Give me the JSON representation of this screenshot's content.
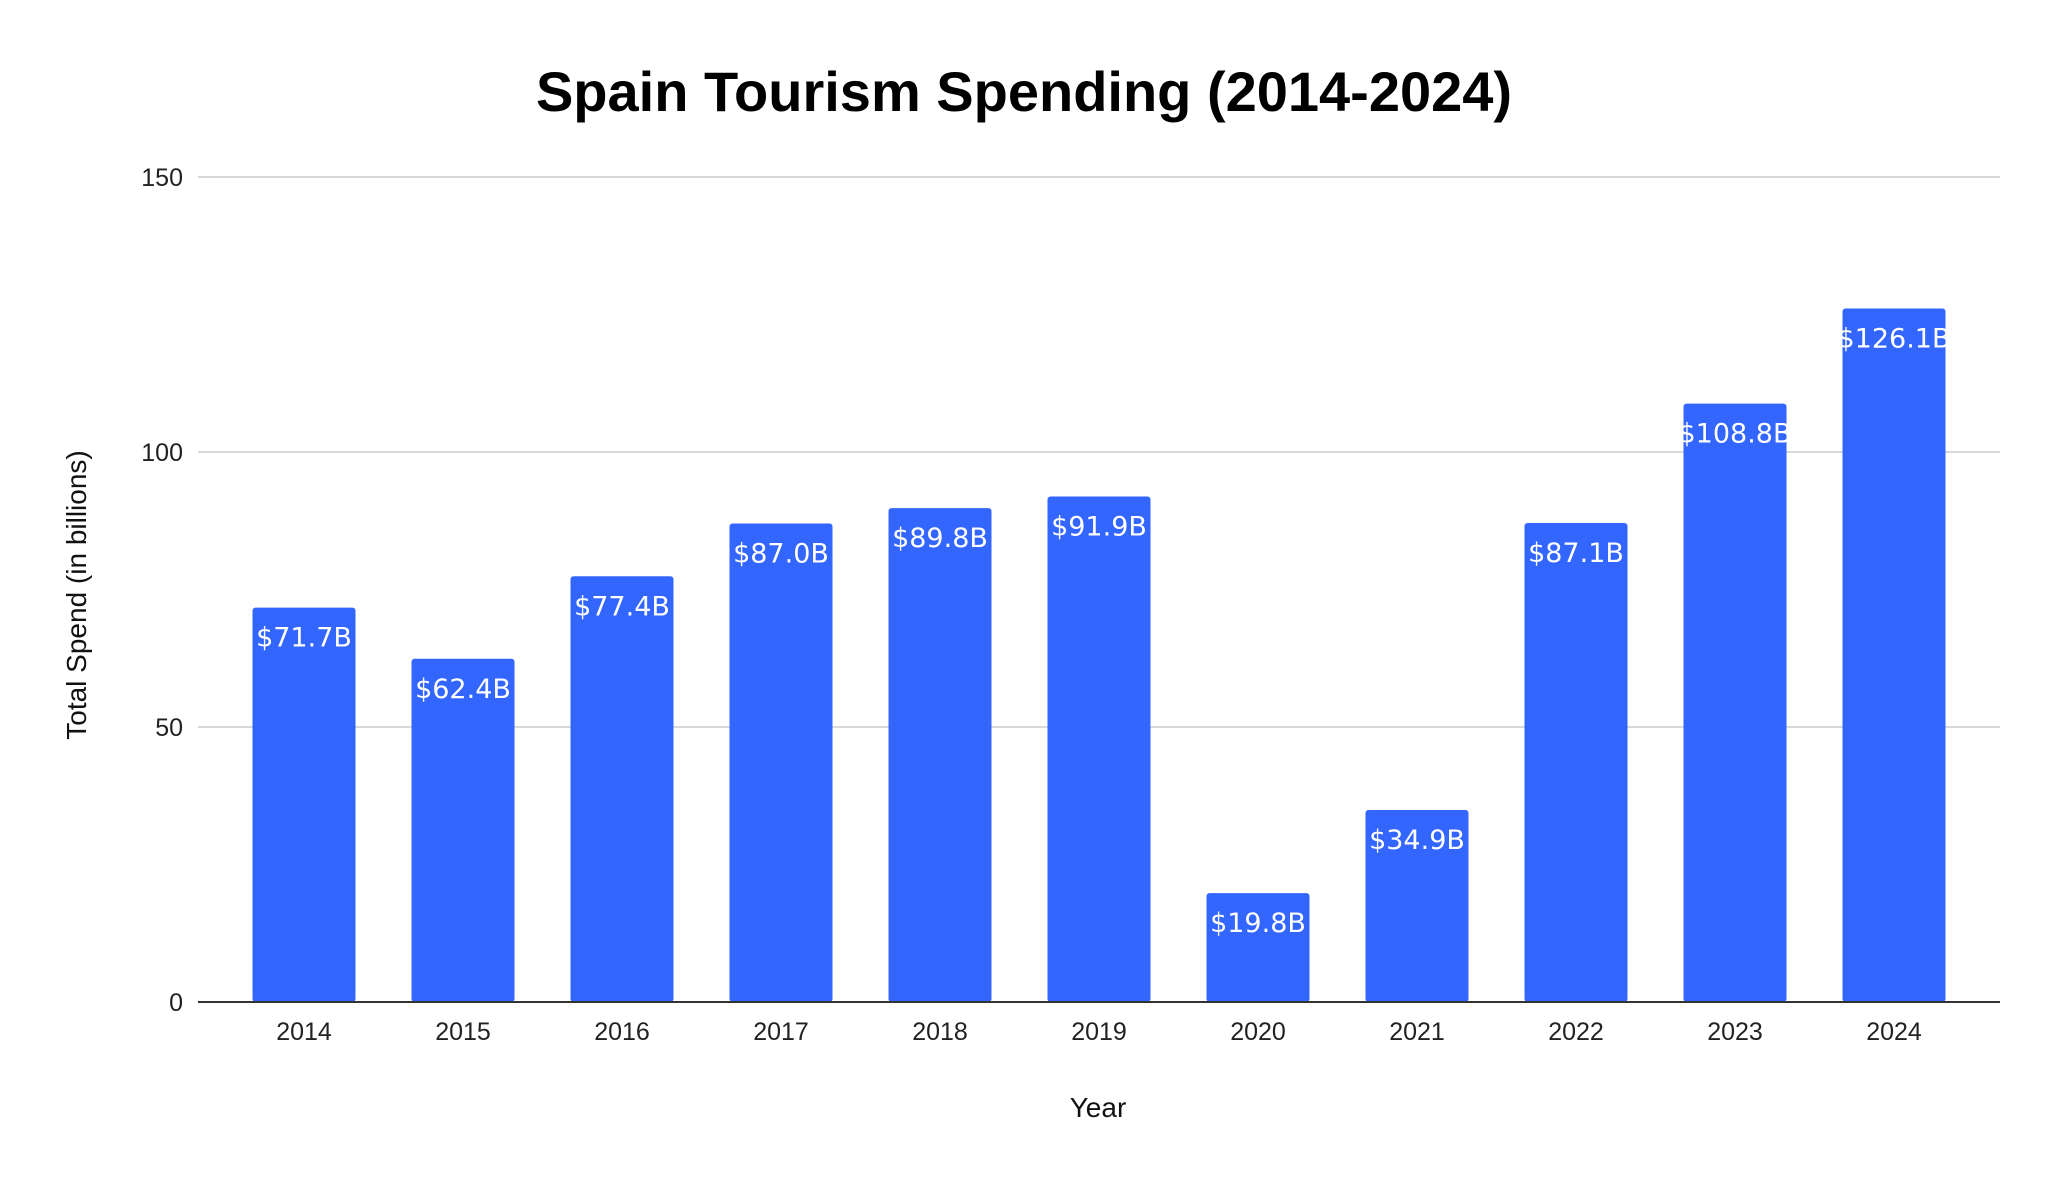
{
  "chart_data": {
    "type": "bar",
    "title": "Spain Tourism Spending (2014-2024)",
    "xlabel": "Year",
    "ylabel": "Total Spend (in billions)",
    "categories": [
      "2014",
      "2015",
      "2016",
      "2017",
      "2018",
      "2019",
      "2020",
      "2021",
      "2022",
      "2023",
      "2024"
    ],
    "values": [
      71.7,
      62.4,
      77.4,
      87.0,
      89.8,
      91.9,
      19.8,
      34.9,
      87.1,
      108.8,
      126.1
    ],
    "data_labels": [
      "$71.7B",
      "$62.4B",
      "$77.4B",
      "$87.0B",
      "$89.8B",
      "$91.9B",
      "$19.8B",
      "$34.9B",
      "$87.1B",
      "$108.8B",
      "$126.1B"
    ],
    "ylim": [
      0,
      150
    ],
    "yticks": [
      "0",
      "50",
      "100",
      "150"
    ],
    "grid": true,
    "legend": "none",
    "bar_color": "#3366ff"
  }
}
